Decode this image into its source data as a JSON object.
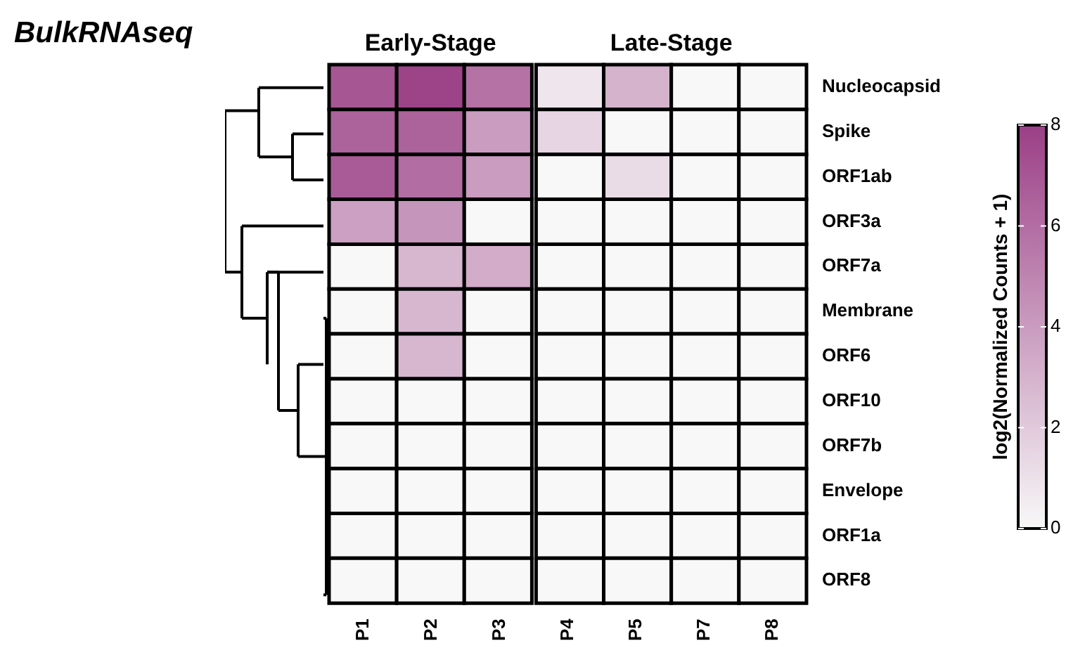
{
  "chart_data": {
    "type": "heatmap",
    "title": "BulkRNAseq",
    "annotations": [
      "Early-Stage",
      "Late-Stage"
    ],
    "categories": [
      "P1",
      "P2",
      "P3",
      "P4",
      "P5",
      "P7",
      "P8"
    ],
    "y_categories": [
      "Nucleocapsid",
      "Spike",
      "ORF1ab",
      "ORF3a",
      "ORF7a",
      "Membrane",
      "ORF6",
      "ORF10",
      "ORF7b",
      "Envelope",
      "ORF1a",
      "ORF8"
    ],
    "cells": [
      [
        7.0,
        7.8,
        5.8,
        0.8,
        3.0,
        0,
        0
      ],
      [
        6.5,
        6.5,
        4.0,
        1.5,
        0,
        0,
        0
      ],
      [
        6.8,
        6.0,
        4.0,
        0,
        1.2,
        0,
        0
      ],
      [
        3.8,
        4.3,
        0,
        0,
        0,
        0,
        0
      ],
      [
        0,
        2.8,
        3.3,
        0,
        0,
        0,
        0
      ],
      [
        0,
        2.8,
        0,
        0,
        0,
        0,
        0
      ],
      [
        0,
        2.8,
        0,
        0,
        0,
        0,
        0
      ],
      [
        0,
        0,
        0,
        0,
        0,
        0,
        0
      ],
      [
        0,
        0,
        0,
        0,
        0,
        0,
        0
      ],
      [
        0,
        0,
        0,
        0,
        0,
        0,
        0
      ],
      [
        0,
        0,
        0,
        0,
        0,
        0,
        0
      ],
      [
        0,
        0,
        0,
        0,
        0,
        0,
        0
      ]
    ],
    "colors": [
      "#f8f8f8",
      "#9b3f86"
    ],
    "clabel": "log2(Normalized Counts + 1)",
    "clim": [
      0,
      8
    ],
    "cticks": [
      0,
      2,
      4,
      6,
      8
    ]
  }
}
